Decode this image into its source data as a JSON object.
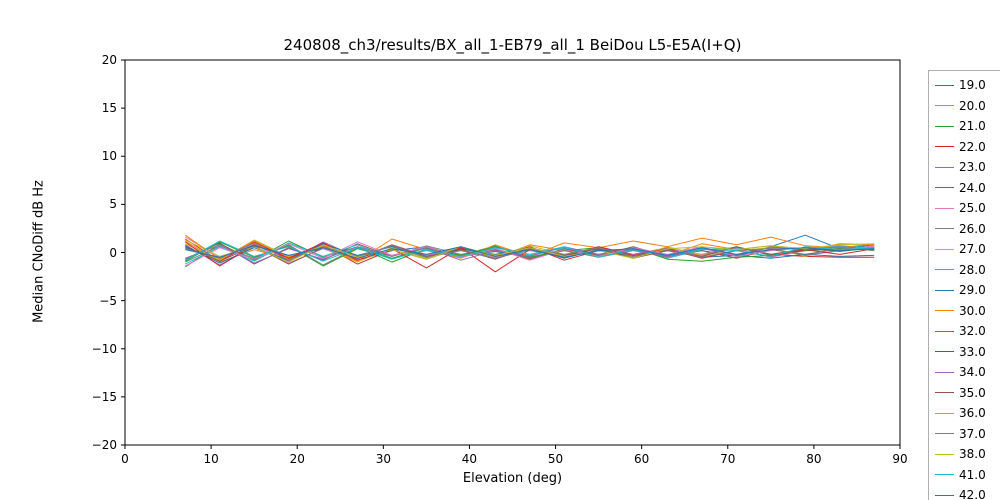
{
  "chart_data": {
    "type": "line",
    "title": "240808_ch3/results/BX_all_1-EB79_all_1 BeiDou L5-E5A(I+Q)",
    "xlabel": "Elevation (deg)",
    "ylabel": "Median CNoDiff dB Hz",
    "xlim": [
      0,
      90
    ],
    "ylim": [
      -20,
      20
    ],
    "xticks": [
      0,
      10,
      20,
      30,
      40,
      50,
      60,
      70,
      80,
      90
    ],
    "yticks": [
      -20,
      -15,
      -10,
      -5,
      0,
      5,
      10,
      15,
      20
    ],
    "ytick_labels": [
      "−20",
      "−15",
      "−10",
      "−5",
      "0",
      "5",
      "10",
      "15",
      "20"
    ],
    "grid": false,
    "legend_position": "right-outside",
    "x": [
      7,
      11,
      15,
      19,
      23,
      27,
      31,
      35,
      39,
      43,
      47,
      51,
      55,
      59,
      63,
      67,
      71,
      75,
      79,
      83,
      87
    ],
    "series": [
      {
        "name": "19.0",
        "color": "#1f77b4",
        "values": [
          0.5,
          -0.6,
          0.8,
          -0.3,
          0.4,
          -0.8,
          0.2,
          0.6,
          -0.4,
          0.1,
          -0.5,
          0.3,
          -0.2,
          0.5,
          -0.3,
          0.2,
          -0.4,
          0.6,
          1.8,
          0.4,
          0.8
        ]
      },
      {
        "name": "20.0",
        "color": "#ff7f0e",
        "values": [
          1.2,
          -1.0,
          0.3,
          -0.7,
          1.0,
          -0.4,
          0.7,
          -0.2,
          0.5,
          -0.6,
          0.8,
          0.2,
          -0.5,
          0.4,
          -0.3,
          0.9,
          0.3,
          0.7,
          0.2,
          0.9,
          0.8
        ]
      },
      {
        "name": "21.0",
        "color": "#2ca02c",
        "values": [
          -1.5,
          0.9,
          -0.8,
          1.2,
          -0.5,
          0.6,
          -1.0,
          0.4,
          -0.3,
          0.7,
          -0.6,
          0.2,
          0.5,
          -0.4,
          0.3,
          -0.2,
          0.6,
          -0.3,
          0.4,
          0.1,
          0.5
        ]
      },
      {
        "name": "22.0",
        "color": "#d62728",
        "values": [
          1.4,
          -0.9,
          1.1,
          -0.6,
          0.8,
          -1.2,
          0.3,
          -0.7,
          0.5,
          -0.4,
          0.6,
          -0.8,
          0.2,
          -0.5,
          0.4,
          -0.3,
          0.5,
          -0.2,
          -0.4,
          -0.5,
          -0.5
        ]
      },
      {
        "name": "23.0",
        "color": "#9467bd",
        "values": [
          0.8,
          -1.3,
          0.6,
          -0.9,
          1.1,
          -0.5,
          0.7,
          -0.3,
          0.4,
          -0.6,
          0.3,
          -0.4,
          0.6,
          -0.2,
          0.5,
          -0.5,
          0.2,
          0.4,
          -0.3,
          0.2,
          0.6
        ]
      },
      {
        "name": "24.0",
        "color": "#8c564b",
        "values": [
          -0.7,
          1.0,
          -1.2,
          0.5,
          -0.8,
          0.9,
          -0.4,
          0.6,
          -0.5,
          0.3,
          -0.7,
          0.4,
          -0.3,
          0.6,
          -0.4,
          0.2,
          -0.6,
          0.3,
          -0.2,
          0.4,
          0.3
        ]
      },
      {
        "name": "25.0",
        "color": "#e377c2",
        "values": [
          1.6,
          -0.5,
          0.9,
          -1.1,
          0.4,
          -0.7,
          0.8,
          -0.3,
          0.6,
          -0.5,
          0.2,
          -0.4,
          0.5,
          -0.6,
          0.3,
          -0.2,
          0.4,
          -0.5,
          0.2,
          0.3,
          0.7
        ]
      },
      {
        "name": "26.0",
        "color": "#7f7f7f",
        "values": [
          -1.0,
          0.7,
          -0.6,
          0.8,
          -1.3,
          0.5,
          -0.4,
          0.7,
          -0.2,
          0.4,
          -0.6,
          0.3,
          -0.5,
          0.2,
          -0.4,
          0.5,
          -0.3,
          0.6,
          0.2,
          0.5,
          0.4
        ]
      },
      {
        "name": "27.0",
        "color": "#bcbd22",
        "values": [
          0.9,
          -0.8,
          1.3,
          -0.4,
          0.6,
          -1.0,
          0.5,
          -0.6,
          0.3,
          -0.4,
          0.7,
          -0.2,
          0.4,
          -0.5,
          0.6,
          -0.3,
          0.2,
          0.5,
          -0.4,
          0.6,
          0.2
        ]
      },
      {
        "name": "28.0",
        "color": "#17becf",
        "values": [
          -1.2,
          0.6,
          -0.9,
          1.0,
          -0.4,
          0.8,
          -0.6,
          0.2,
          -0.5,
          0.6,
          -0.3,
          0.5,
          -0.2,
          0.4,
          -0.6,
          0.3,
          0.5,
          -0.2,
          0.3,
          0.7,
          0.5
        ]
      },
      {
        "name": "29.0",
        "color": "#1f77b4",
        "values": [
          0.7,
          -1.1,
          0.5,
          -0.8,
          0.9,
          -0.3,
          0.6,
          -0.5,
          0.4,
          -0.2,
          0.5,
          -0.6,
          0.3,
          -0.4,
          0.2,
          -0.5,
          -0.3,
          -0.6,
          -0.2,
          -0.4,
          -0.3
        ]
      },
      {
        "name": "30.0",
        "color": "#ff7f0e",
        "values": [
          1.8,
          -0.7,
          1.2,
          -0.5,
          0.7,
          -0.9,
          1.4,
          0.3,
          -0.6,
          0.8,
          -0.4,
          1.0,
          0.5,
          1.2,
          0.6,
          1.5,
          0.8,
          1.6,
          0.7,
          0.5,
          0.9
        ]
      },
      {
        "name": "32.0",
        "color": "#2ca02c",
        "values": [
          -0.9,
          1.1,
          -0.5,
          0.7,
          -1.4,
          0.4,
          -0.6,
          0.5,
          -0.3,
          0.6,
          -0.5,
          0.2,
          -0.4,
          0.5,
          -0.7,
          -0.9,
          -0.5,
          -0.3,
          0.2,
          0.4,
          0.3
        ]
      },
      {
        "name": "33.0",
        "color": "#d62728",
        "values": [
          1.1,
          -1.4,
          0.8,
          -0.6,
          1.0,
          -0.8,
          0.4,
          -1.6,
          0.5,
          -2.0,
          0.3,
          -0.5,
          0.6,
          -0.3,
          0.4,
          -0.6,
          0.2,
          -0.4,
          0.3,
          -0.2,
          0.4
        ]
      },
      {
        "name": "34.0",
        "color": "#9467bd",
        "values": [
          -0.6,
          0.8,
          -1.1,
          0.4,
          -0.7,
          0.6,
          -0.3,
          0.5,
          -0.8,
          0.2,
          -0.4,
          0.6,
          -0.2,
          0.3,
          -0.5,
          0.4,
          -0.2,
          0.5,
          0.3,
          0.6,
          0.4
        ]
      },
      {
        "name": "35.0",
        "color": "#8c564b",
        "values": [
          0.6,
          -0.9,
          0.7,
          -1.2,
          0.5,
          -0.6,
          0.8,
          -0.4,
          0.3,
          -0.7,
          0.5,
          -0.3,
          0.4,
          -0.6,
          0.2,
          -0.4,
          0.6,
          -0.2,
          0.4,
          0.2,
          0.5
        ]
      },
      {
        "name": "36.0",
        "color": "#e377c2",
        "values": [
          -1.4,
          0.5,
          -0.7,
          0.9,
          -0.6,
          1.1,
          -0.3,
          0.6,
          -0.5,
          0.4,
          -0.8,
          0.3,
          -0.4,
          0.5,
          -0.2,
          0.6,
          -0.4,
          0.2,
          0.5,
          0.3,
          0.6
        ]
      },
      {
        "name": "37.0",
        "color": "#7f7f7f",
        "values": [
          0.4,
          -0.6,
          1.0,
          -0.8,
          0.6,
          -0.4,
          0.7,
          -0.5,
          0.2,
          -0.6,
          0.4,
          -0.2,
          0.5,
          -0.4,
          0.3,
          -0.5,
          0.2,
          0.4,
          -0.3,
          0.5,
          0.2
        ]
      },
      {
        "name": "38.0",
        "color": "#bcbd22",
        "values": [
          1.3,
          -0.4,
          0.6,
          -1.0,
          0.8,
          -0.5,
          0.3,
          -0.7,
          0.6,
          -0.3,
          0.5,
          -0.4,
          0.2,
          -0.6,
          0.4,
          0.6,
          0.3,
          0.7,
          0.4,
          0.8,
          0.9
        ]
      },
      {
        "name": "41.0",
        "color": "#17becf",
        "values": [
          -0.8,
          1.2,
          -0.4,
          0.6,
          -0.9,
          0.5,
          -0.7,
          0.3,
          -0.4,
          0.5,
          -0.2,
          0.6,
          -0.5,
          0.3,
          -0.3,
          0.4,
          0.2,
          -0.4,
          0.6,
          0.3,
          0.5
        ]
      },
      {
        "name": "42.0",
        "color": "#1f77b4",
        "values": [
          0.3,
          -0.5,
          0.7,
          -0.3,
          0.5,
          -0.6,
          0.4,
          -0.2,
          0.6,
          -0.4,
          0.3,
          -0.5,
          0.2,
          0.4,
          -0.3,
          0.5,
          -0.2,
          0.3,
          0.5,
          0.2,
          0.4
        ]
      }
    ]
  }
}
